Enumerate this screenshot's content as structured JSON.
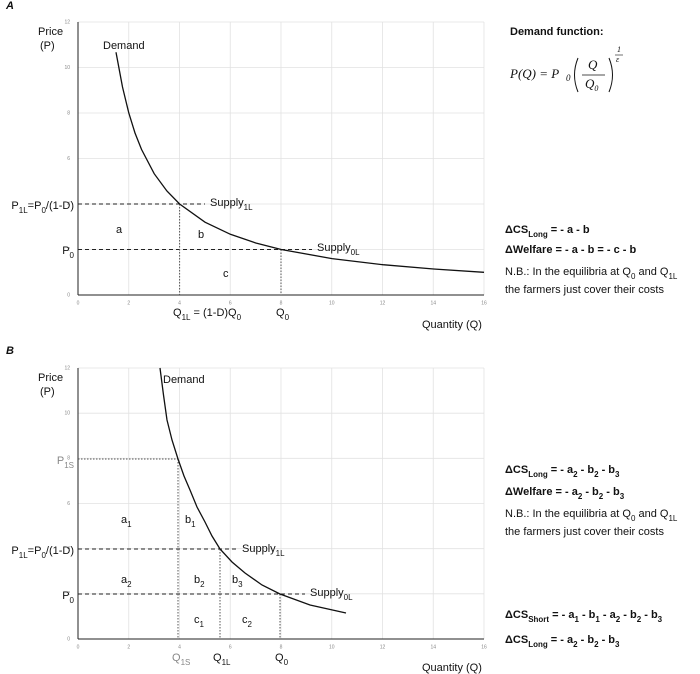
{
  "panels": [
    {
      "letter": "A",
      "y_axis_label": [
        "Price",
        "(P)"
      ],
      "x_axis_label": "Quantity (Q)",
      "x_ticks": [
        "0",
        "2",
        "4",
        "6",
        "8",
        "10",
        "12",
        "14",
        "16"
      ],
      "y_ticks": [
        "0",
        "2",
        "4",
        "6",
        "8",
        "10",
        "12"
      ],
      "curve_label": "Demand",
      "price_high": [
        "P",
        "1L",
        "=P",
        "0",
        "/(1-D)"
      ],
      "price_low": [
        "P",
        "0"
      ],
      "supply_high": [
        "Supply",
        "1L"
      ],
      "supply_low": [
        "Supply",
        "0L"
      ],
      "q_high": [
        "Q",
        "1L",
        " = (1-D)Q",
        "0"
      ],
      "q_low": [
        "Q",
        "0"
      ],
      "areas": [
        [
          "a"
        ],
        [
          "b"
        ],
        [
          "c"
        ]
      ],
      "formula_title": "Demand function:",
      "formula": {
        "lhs": "P(Q) = P",
        "lhs_sub": "0",
        "num": "Q",
        "den": [
          "Q",
          "0"
        ],
        "exp_num": "1",
        "exp_den": "ε"
      },
      "results": [
        [
          "ΔCS",
          "Long",
          " = - a - b"
        ],
        [
          "ΔWelfare = - a - b = - c - b"
        ]
      ],
      "note": [
        [
          "N.B.: In the equilibria at Q",
          "0",
          " and Q",
          "1L"
        ],
        [
          "the farmers just cover their costs"
        ]
      ]
    },
    {
      "letter": "B",
      "y_axis_label": [
        "Price",
        "(P)"
      ],
      "x_axis_label": "Quantity (Q)",
      "x_ticks": [
        "0",
        "2",
        "4",
        "6",
        "8",
        "10",
        "12",
        "14",
        "16"
      ],
      "y_ticks": [
        "0",
        "2",
        "4",
        "6",
        "8",
        "10",
        "12"
      ],
      "curve_label": "Demand",
      "price_short": [
        "P",
        "1S"
      ],
      "price_high": [
        "P",
        "1L",
        "=P",
        "0",
        "/(1-D)"
      ],
      "price_low": [
        "P",
        "0"
      ],
      "supply_high": [
        "Supply",
        "1L"
      ],
      "supply_low": [
        "Supply",
        "0L"
      ],
      "q_short": [
        "Q",
        "1S"
      ],
      "q_high": [
        "Q",
        "1L"
      ],
      "q_low": [
        "Q",
        "0"
      ],
      "areas": [
        [
          "a",
          "1"
        ],
        [
          "b",
          "1"
        ],
        [
          "a",
          "2"
        ],
        [
          "b",
          "2"
        ],
        [
          "b",
          "3"
        ],
        [
          "c",
          "1"
        ],
        [
          "c",
          "2"
        ]
      ],
      "results": [
        [
          "ΔCS",
          "Long",
          " = - a",
          "2",
          " - b",
          "2",
          " - b",
          "3"
        ],
        [
          "ΔWelfare = - a",
          "2",
          " - b",
          "2",
          " - b",
          "3"
        ]
      ],
      "note": [
        [
          "N.B.: In the equilibria at Q",
          "0",
          " and Q",
          "1L"
        ],
        [
          "the farmers just cover their costs"
        ]
      ],
      "results_short": [
        [
          "ΔCS",
          "Short",
          " = - a",
          "1",
          " - b",
          "1",
          " - a",
          "2",
          " - b",
          "2",
          " - b",
          "3"
        ],
        [
          "ΔCS",
          "Long",
          " = - a",
          "2",
          " - b",
          "2",
          " - b",
          "3"
        ]
      ]
    }
  ]
}
